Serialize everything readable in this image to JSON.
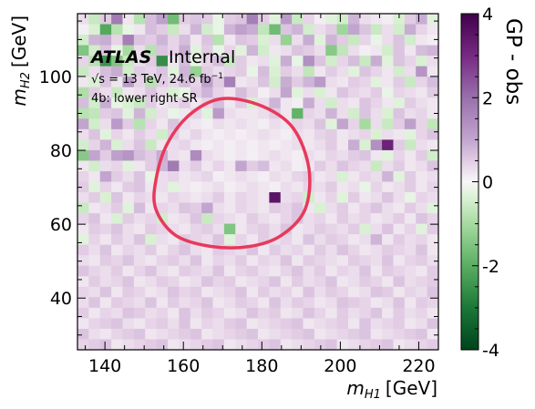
{
  "chart_data": {
    "type": "heatmap",
    "xlabel": "m_H1 [GeV]",
    "ylabel": "m_H2 [GeV]",
    "x_label_main": "m",
    "x_label_sub": "H1",
    "x_label_unit": "[GeV]",
    "y_label_main": "m",
    "y_label_sub": "H2",
    "y_label_unit": "[GeV]",
    "xlim": [
      133,
      225
    ],
    "ylim": [
      26,
      117
    ],
    "x_ticks": [
      140,
      160,
      180,
      200,
      220
    ],
    "y_ticks": [
      40,
      60,
      80,
      100
    ],
    "x_tick_labels": [
      "140",
      "160",
      "180",
      "200",
      "220"
    ],
    "y_tick_labels": [
      "40",
      "60",
      "80",
      "100"
    ],
    "colorbar": {
      "label": "GP - obs",
      "range": [
        -4,
        4
      ],
      "ticks": [
        4,
        2,
        0,
        -2,
        -4
      ],
      "tick_labels": [
        "4",
        "2",
        "0",
        "-2",
        "-4"
      ],
      "colormap": "PRGn diverging (purple positive, green negative)"
    },
    "annotations": {
      "atlas": "ATLAS",
      "status": "Internal",
      "energy_prefix": "√s",
      "energy_text": " = 13 TeV, 24.6 fb",
      "energy_sup": "−1",
      "region": "4b: lower right SR"
    },
    "grid": {
      "nx": 32,
      "ny": 32,
      "x_edges": [
        133,
        225
      ],
      "y_edges": [
        26,
        117
      ],
      "values": [
        [
          0.3,
          -0.6,
          0.5,
          1.8,
          0.2,
          -0.8,
          0.7,
          1.1,
          -1.7,
          0.5,
          0.6,
          0.5,
          -0.2,
          0.5,
          0.6,
          1.7,
          0.5,
          -0.3,
          1.2,
          -0.6,
          0.4,
          0.1,
          -0.3,
          -0.5,
          0.8,
          0.3,
          0.2,
          0.1,
          -0.4,
          0.5,
          0.9,
          -0.3
        ],
        [
          0.1,
          -0.4,
          -2.1,
          -0.8,
          -0.2,
          0.2,
          0.7,
          0.5,
          -0.6,
          0.3,
          0.8,
          -0.5,
          -0.2,
          0.8,
          1.1,
          0.9,
          -0.7,
          -1.7,
          0.6,
          0.8,
          -0.5,
          0.3,
          0.5,
          -1.1,
          1.0,
          0.6,
          -0.6,
          0.3,
          -0.5,
          0.9,
          0.4,
          0.2
        ],
        [
          -0.5,
          0.8,
          0.9,
          0.4,
          1.7,
          0.6,
          0.5,
          0.8,
          0.4,
          0.7,
          0.2,
          0.6,
          -0.8,
          0.2,
          0.6,
          0.5,
          -0.4,
          0.3,
          -1.2,
          0.3,
          0.9,
          -0.3,
          0.8,
          0.5,
          -0.6,
          0.4,
          -0.2,
          0.3,
          0.6,
          -0.5,
          0.2,
          0.1
        ],
        [
          -1.5,
          -0.5,
          0.6,
          -0.2,
          -1.0,
          0.3,
          -0.8,
          0.6,
          0.4,
          0.9,
          -0.3,
          0.5,
          -0.2,
          0.4,
          -0.3,
          0.8,
          -0.5,
          0.2,
          0.3,
          0.6,
          0.5,
          0.3,
          -1.4,
          -0.7,
          0.3,
          0.1,
          0.2,
          -0.5,
          0.6,
          0.2,
          0.7,
          0.8
        ],
        [
          0.4,
          -0.8,
          -2.5,
          -1.5,
          -0.6,
          0.3,
          0.5,
          -2.6,
          0.2,
          0.7,
          -0.2,
          0.4,
          0.7,
          -0.6,
          0.5,
          0.2,
          0.3,
          -0.3,
          0.9,
          -0.2,
          1.4,
          0.6,
          -0.5,
          0.4,
          0.7,
          -0.6,
          0.9,
          -0.3,
          0.6,
          0.4,
          -0.4,
          0.3
        ],
        [
          -0.6,
          0.3,
          0.7,
          0.9,
          -0.5,
          0.5,
          0.4,
          0.6,
          -0.3,
          0.8,
          -1.2,
          0.5,
          0.3,
          0.4,
          0.5,
          -0.2,
          0.7,
          -0.4,
          0.5,
          0.3,
          -0.7,
          0.2,
          0.5,
          0.3,
          -0.3,
          0.6,
          0.4,
          0.2,
          -0.5,
          0.3,
          1.3,
          0.2
        ],
        [
          0.2,
          -0.4,
          0.6,
          0.2,
          1.2,
          0.4,
          -0.8,
          0.5,
          0.4,
          0.7,
          0.4,
          1.1,
          0.5,
          1.7,
          0.2,
          0.3,
          0.6,
          -0.5,
          0.9,
          0.5,
          0.8,
          1.2,
          0.3,
          0.2,
          0.5,
          0.4,
          -0.3,
          0.2,
          0.5,
          -0.6,
          0.4,
          0.7
        ],
        [
          -0.9,
          0.5,
          0.3,
          -0.6,
          0.2,
          0.3,
          0.6,
          0.3,
          -0.4,
          -0.2,
          0.5,
          0.8,
          0.4,
          0.2,
          0.7,
          0.4,
          0.1,
          0.3,
          1.0,
          -0.3,
          0.3,
          -0.4,
          0.2,
          0.6,
          0.4,
          0.3,
          0.5,
          -0.2,
          0.4,
          0.3,
          0.2,
          0.5
        ],
        [
          0.7,
          -0.5,
          0.9,
          -0.2,
          -0.4,
          -0.6,
          0.5,
          0.2,
          0.3,
          0.5,
          0.2,
          0.4,
          0.7,
          0.2,
          0.5,
          -0.4,
          0.3,
          0.8,
          0.2,
          0.1,
          0.9,
          0.3,
          -0.5,
          0.3,
          0.2,
          0.6,
          0.4,
          0.2,
          -0.3,
          0.5,
          0.3,
          0.2
        ],
        [
          -0.8,
          -0.7,
          0.5,
          0.6,
          -0.3,
          0.8,
          -0.5,
          0.3,
          -0.2,
          0.2,
          0.4,
          -0.3,
          1.2,
          0.3,
          0.2,
          0.2,
          0.3,
          0.5,
          0.2,
          -1.9,
          0.4,
          0.3,
          0.8,
          0.3,
          -0.5,
          0.6,
          0.3,
          -0.4,
          0.6,
          0.3,
          0.4,
          0.2
        ],
        [
          1.0,
          -0.5,
          0.3,
          1.2,
          0.5,
          -0.8,
          0.4,
          0.2,
          0.6,
          0.3,
          0.2,
          0.1,
          0.3,
          0.2,
          0.3,
          0.2,
          0.1,
          0.3,
          0.2,
          0.4,
          0.3,
          0.6,
          -0.3,
          1.0,
          0.4,
          -1.0,
          0.3,
          -0.6,
          0.5,
          1.1,
          0.4,
          -0.7
        ],
        [
          0.3,
          0.6,
          -0.3,
          0.4,
          0.2,
          0.5,
          0.3,
          -0.5,
          0.5,
          0.2,
          0.4,
          0.2,
          0.1,
          0.2,
          0.1,
          0.2,
          0.3,
          0.2,
          0.1,
          0.3,
          0.2,
          0.4,
          0.5,
          0.2,
          0.3,
          0.4,
          -0.4,
          0.3,
          0.2,
          -0.3,
          0.4,
          0.6
        ],
        [
          -0.5,
          0.4,
          0.8,
          -0.4,
          0.3,
          0.6,
          -0.6,
          0.2,
          0.3,
          0.4,
          0.2,
          0.1,
          0.2,
          0.1,
          0.2,
          0.1,
          0.2,
          0.1,
          0.2,
          0.3,
          0.2,
          0.3,
          0.5,
          0.2,
          0.9,
          -0.4,
          1.4,
          3.2,
          0.5,
          -0.6,
          0.3,
          0.2
        ],
        [
          -1.4,
          1.0,
          0.5,
          1.1,
          1.3,
          0.7,
          0.5,
          0.9,
          0.3,
          0.2,
          1.5,
          0.3,
          0.2,
          0.1,
          0.2,
          0.1,
          0.2,
          0.3,
          0.2,
          0.1,
          0.3,
          0.2,
          0.4,
          0.3,
          0.5,
          0.6,
          0.2,
          -0.3,
          0.4,
          0.2,
          0.5,
          -0.5
        ],
        [
          0.2,
          -0.5,
          0.3,
          0.4,
          -0.3,
          0.2,
          0.5,
          0.8,
          1.8,
          0.3,
          0.5,
          0.2,
          0.4,
          0.2,
          1.0,
          0.5,
          0.7,
          0.2,
          0.3,
          0.1,
          0.2,
          0.5,
          0.3,
          0.6,
          0.4,
          0.3,
          -0.6,
          0.3,
          0.5,
          0.2,
          0.3,
          0.6
        ],
        [
          0.4,
          0.2,
          1.0,
          0.5,
          0.3,
          0.6,
          -0.2,
          0.3,
          0.4,
          0.2,
          0.3,
          0.4,
          0.1,
          0.2,
          0.3,
          0.2,
          0.1,
          0.3,
          0.2,
          0.4,
          0.5,
          0.2,
          0.3,
          -0.4,
          0.2,
          0.4,
          0.3,
          0.8,
          -0.3,
          0.5,
          0.2,
          0.3
        ],
        [
          0.5,
          -0.3,
          0.4,
          0.2,
          0.5,
          0.6,
          0.2,
          0.3,
          -0.3,
          0.2,
          0.1,
          0.2,
          0.3,
          0.1,
          0.2,
          0.3,
          0.2,
          0.1,
          0.3,
          0.2,
          0.4,
          0.3,
          0.5,
          0.2,
          0.3,
          -0.2,
          0.4,
          0.2,
          0.3,
          0.5,
          0.2,
          0.4
        ],
        [
          0.3,
          0.5,
          -0.4,
          0.6,
          0.2,
          0.4,
          0.3,
          0.2,
          0.4,
          0.3,
          0.2,
          0.3,
          0.5,
          0.2,
          0.4,
          0.3,
          0.2,
          3.5,
          0.3,
          0.4,
          -0.5,
          0.2,
          0.4,
          -0.3,
          0.5,
          0.2,
          0.3,
          0.6,
          0.3,
          -0.2,
          0.4,
          0.3
        ],
        [
          -0.6,
          0.2,
          0.3,
          0.5,
          -0.3,
          0.7,
          0.2,
          0.4,
          0.3,
          0.6,
          0.5,
          1.0,
          0.3,
          0.2,
          0.4,
          0.3,
          0.2,
          0.5,
          0.4,
          0.6,
          0.2,
          -0.4,
          0.3,
          0.5,
          0.2,
          0.4,
          0.6,
          0.3,
          0.2,
          0.5,
          0.3,
          -0.3
        ],
        [
          0.4,
          0.6,
          0.2,
          -0.4,
          0.5,
          0.3,
          0.4,
          -0.5,
          0.2,
          0.3,
          0.6,
          -0.6,
          0.4,
          0.3,
          0.2,
          0.5,
          0.3,
          0.2,
          0.4,
          0.6,
          0.3,
          0.4,
          0.2,
          0.5,
          0.3,
          0.4,
          0.2,
          0.3,
          0.5,
          0.2,
          0.6,
          0.4
        ],
        [
          0.2,
          0.5,
          0.4,
          0.6,
          0.3,
          0.2,
          0.5,
          0.4,
          0.3,
          0.2,
          0.4,
          0.5,
          0.3,
          -1.5,
          0.2,
          0.4,
          0.5,
          0.3,
          0.6,
          0.2,
          0.3,
          0.5,
          0.4,
          0.3,
          0.5,
          -0.4,
          0.3,
          0.6,
          0.2,
          0.4,
          -0.3,
          0.5
        ],
        [
          -0.3,
          0.4,
          0.2,
          0.5,
          0.3,
          0.6,
          -0.4,
          0.3,
          0.2,
          0.5,
          0.4,
          0.3,
          0.6,
          -0.3,
          0.4,
          0.2,
          0.5,
          0.3,
          0.4,
          0.2,
          0.6,
          0.3,
          0.5,
          0.4,
          0.2,
          0.3,
          0.8,
          0.2,
          0.5,
          0.3,
          0.4,
          0.2
        ],
        [
          0.5,
          0.3,
          0.6,
          0.2,
          0.4,
          0.3,
          0.5,
          0.2,
          0.4,
          0.6,
          0.3,
          0.2,
          0.5,
          0.4,
          0.3,
          0.6,
          0.2,
          0.5,
          0.3,
          0.4,
          0.2,
          0.5,
          0.3,
          0.6,
          0.4,
          0.2,
          0.3,
          0.5,
          0.4,
          0.3,
          0.6,
          0.2
        ],
        [
          0.3,
          0.2,
          0.5,
          0.4,
          0.6,
          0.3,
          0.2,
          0.4,
          0.5,
          0.3,
          0.6,
          0.2,
          0.4,
          0.3,
          0.5,
          0.2,
          0.4,
          0.3,
          0.6,
          0.2,
          0.5,
          0.4,
          0.3,
          0.2,
          0.5,
          0.4,
          0.3,
          0.6,
          0.2,
          0.4,
          0.5,
          0.3
        ],
        [
          0.6,
          0.4,
          0.3,
          0.5,
          0.2,
          0.4,
          0.6,
          0.3,
          0.2,
          0.5,
          0.4,
          0.3,
          0.6,
          0.2,
          0.4,
          0.5,
          0.3,
          0.2,
          0.4,
          0.6,
          0.3,
          0.5,
          0.2,
          0.4,
          0.3,
          0.6,
          0.2,
          0.5,
          0.4,
          0.3,
          0.2,
          0.5
        ],
        [
          0.2,
          0.5,
          0.3,
          0.4,
          0.6,
          0.2,
          0.3,
          0.5,
          0.4,
          0.2,
          0.3,
          0.6,
          0.4,
          0.5,
          0.2,
          0.3,
          0.4,
          0.6,
          0.2,
          0.5,
          0.3,
          0.4,
          0.6,
          0.2,
          0.3,
          0.5,
          0.4,
          0.2,
          0.6,
          0.3,
          0.4,
          0.5
        ],
        [
          0.4,
          0.3,
          0.6,
          0.2,
          0.5,
          0.4,
          0.2,
          0.3,
          0.6,
          0.4,
          0.5,
          0.2,
          0.3,
          0.4,
          0.6,
          0.2,
          0.5,
          0.3,
          0.4,
          0.2,
          0.6,
          0.3,
          0.5,
          0.4,
          0.2,
          0.3,
          0.6,
          0.5,
          0.2,
          0.4,
          0.3,
          0.6
        ],
        [
          0.3,
          0.6,
          0.2,
          0.5,
          0.4,
          0.3,
          0.6,
          0.2,
          0.5,
          0.3,
          0.4,
          0.6,
          0.2,
          0.3,
          0.5,
          0.4,
          0.2,
          0.6,
          0.3,
          0.5,
          0.4,
          0.2,
          0.3,
          0.6,
          0.5,
          0.4,
          0.2,
          0.3,
          0.6,
          0.2,
          0.5,
          0.4
        ],
        [
          0.5,
          0.2,
          0.4,
          0.3,
          0.6,
          0.5,
          0.3,
          0.4,
          0.2,
          0.6,
          0.3,
          0.5,
          0.4,
          0.2,
          0.3,
          0.6,
          0.4,
          0.5,
          0.2,
          0.3,
          0.6,
          0.4,
          0.2,
          0.5,
          0.3,
          0.4,
          0.6,
          0.2,
          0.5,
          0.3,
          0.4,
          0.2
        ],
        [
          0.2,
          0.4,
          0.5,
          0.6,
          0.3,
          0.2,
          0.4,
          0.5,
          0.3,
          0.6,
          0.2,
          0.4,
          0.3,
          0.5,
          0.6,
          0.2,
          0.3,
          0.4,
          0.5,
          0.6,
          0.2,
          0.3,
          0.4,
          0.5,
          0.2,
          0.6,
          0.3,
          0.4,
          0.5,
          0.2,
          0.3,
          0.6
        ],
        [
          0.6,
          0.3,
          0.2,
          0.4,
          0.5,
          0.6,
          0.2,
          0.3,
          0.4,
          0.5,
          0.6,
          0.2,
          0.3,
          0.4,
          0.5,
          0.6,
          0.2,
          0.3,
          0.4,
          0.5,
          0.6,
          0.2,
          0.3,
          0.4,
          0.5,
          0.6,
          0.2,
          0.3,
          0.4,
          0.5,
          0.6,
          0.2
        ],
        [
          0.4,
          0.5,
          0.6,
          0.2,
          0.3,
          0.4,
          0.5,
          0.6,
          0.2,
          0.3,
          0.4,
          0.5,
          0.6,
          0.2,
          0.3,
          0.4,
          0.5,
          0.6,
          0.2,
          0.3,
          0.4,
          0.5,
          0.6,
          0.2,
          0.3,
          0.4,
          0.5,
          0.6,
          0.2,
          0.3,
          0.4,
          0.5
        ]
      ]
    },
    "signal_region": {
      "color": "#e8395a",
      "center": [
        170,
        70
      ],
      "contour": [
        [
          170,
          94
        ],
        [
          180,
          92
        ],
        [
          188,
          86
        ],
        [
          192,
          75
        ],
        [
          191,
          64
        ],
        [
          185,
          57
        ],
        [
          177,
          54
        ],
        [
          167,
          54
        ],
        [
          158,
          57
        ],
        [
          153,
          64
        ],
        [
          153,
          72
        ],
        [
          156,
          82
        ],
        [
          162,
          90
        ],
        [
          170,
          94
        ]
      ]
    }
  }
}
